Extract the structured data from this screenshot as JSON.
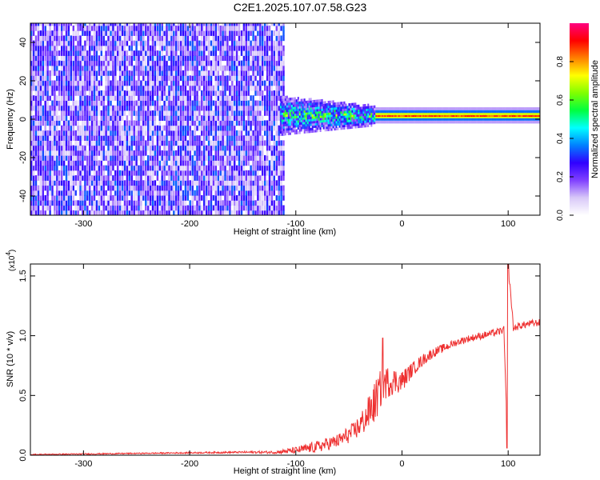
{
  "figure": {
    "title": "C2E1.2025.107.07.58.G23"
  },
  "chart_data": [
    {
      "type": "heatmap",
      "xlabel": "Height of straight line (km)",
      "ylabel": "Frequency (Hz)",
      "xlim": [
        -350,
        130
      ],
      "ylim": [
        -50,
        50
      ],
      "xticks": [
        -300,
        -200,
        -100,
        0,
        100
      ],
      "yticks": [
        -40,
        -20,
        0,
        20,
        40
      ],
      "colorbar": {
        "label": "Normalized spectral amplitude",
        "ticks": [
          "0.0",
          "0.2",
          "0.4",
          "0.6",
          "0.8"
        ],
        "range": [
          0,
          1
        ],
        "colormap": [
          "#ffffff",
          "#d8c8f8",
          "#8040ff",
          "#3000ff",
          "#0080ff",
          "#00ffff",
          "#00ff40",
          "#80ff00",
          "#ffff00",
          "#ff8000",
          "#ff0000",
          "#ff0080"
        ]
      },
      "regions": [
        {
          "name": "broadband noise",
          "x": [
            -350,
            -112
          ],
          "freq": [
            -50,
            50
          ],
          "amplitude": 0.2
        },
        {
          "name": "carrier onset",
          "x": [
            -115,
            -25
          ],
          "freq": [
            -12,
            8
          ],
          "amplitude": 0.45
        },
        {
          "name": "narrow carrier",
          "x": [
            -25,
            130
          ],
          "freq": [
            0,
            4
          ],
          "amplitude": 0.9
        }
      ]
    },
    {
      "type": "line",
      "xlabel": "Height of straight line (km)",
      "ylabel": "SNR (10 * v/v)",
      "scale_label": "(x10",
      "scale_exponent": "4",
      "xlim": [
        -350,
        130
      ],
      "ylim": [
        0,
        1.6
      ],
      "xticks": [
        -300,
        -200,
        -100,
        0,
        100
      ],
      "yticks": [
        "0.0",
        "0.5",
        "1.0",
        "1.5"
      ],
      "color": "#ee3030",
      "series": [
        {
          "x": [
            -350,
            -300,
            -250,
            -200,
            -150,
            -120,
            -100,
            -80,
            -60,
            -45,
            -35,
            -25,
            -18,
            -10,
            0,
            10,
            20,
            30,
            40,
            50,
            60,
            70,
            80,
            90,
            96,
            99,
            101,
            105,
            110,
            120,
            130
          ],
          "y": [
            0.005,
            0.01,
            0.015,
            0.02,
            0.025,
            0.025,
            0.04,
            0.07,
            0.12,
            0.2,
            0.3,
            0.45,
            0.6,
            0.62,
            0.62,
            0.72,
            0.8,
            0.86,
            0.9,
            0.94,
            0.97,
            0.99,
            1.01,
            1.03,
            1.05,
            0.2,
            1.5,
            1.06,
            1.08,
            1.1,
            1.11
          ]
        }
      ],
      "noise_band": {
        "x": [
          -350,
          -300,
          -250,
          -200,
          -150,
          -120,
          -100,
          -80,
          -60,
          -45,
          -35,
          -25,
          -18,
          -10,
          0,
          10,
          20,
          30,
          40,
          50,
          60,
          70,
          80,
          90,
          96,
          99,
          101,
          105,
          110,
          120,
          130
        ],
        "half_width": [
          0.005,
          0.005,
          0.005,
          0.006,
          0.008,
          0.012,
          0.03,
          0.05,
          0.06,
          0.08,
          0.12,
          0.18,
          0.15,
          0.12,
          0.09,
          0.06,
          0.05,
          0.04,
          0.035,
          0.03,
          0.03,
          0.03,
          0.03,
          0.03,
          0.03,
          0.03,
          0.03,
          0.03,
          0.03,
          0.03,
          0.03
        ]
      },
      "spikes": [
        {
          "x": -18,
          "y": 0.98
        },
        {
          "x": 99,
          "y": 0.06
        },
        {
          "x": 100,
          "y": 1.6
        }
      ]
    }
  ]
}
